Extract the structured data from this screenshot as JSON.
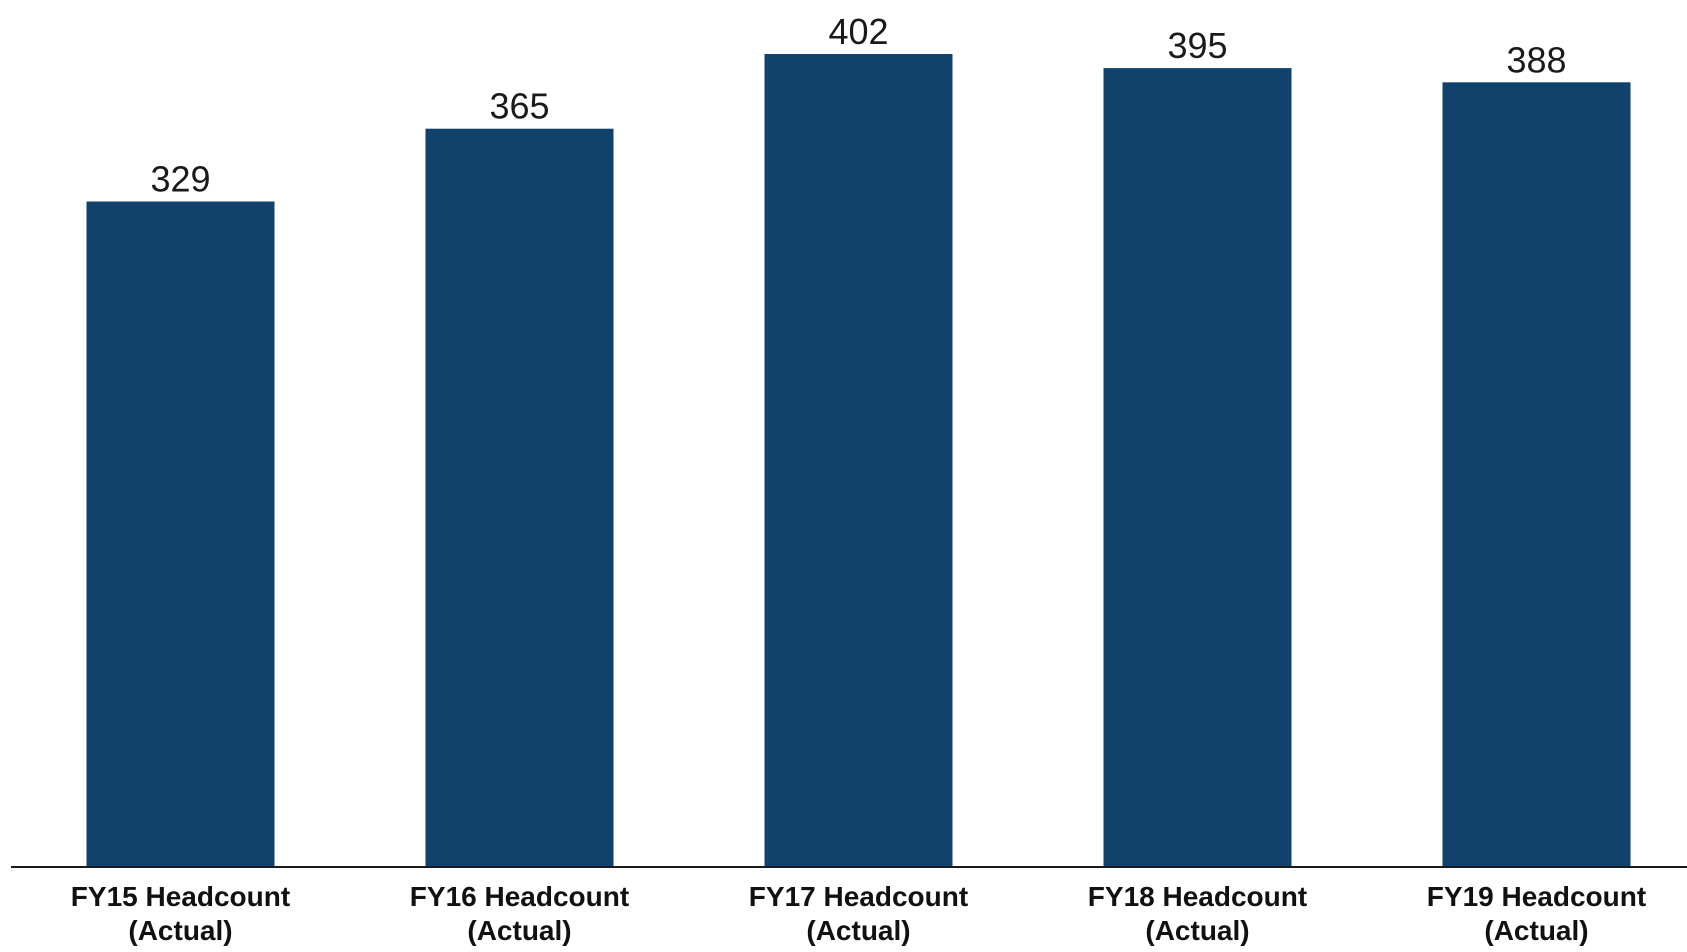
{
  "chart_data": {
    "type": "bar",
    "title": "",
    "xlabel": "",
    "ylabel": "",
    "categories": [
      [
        "FY15 Headcount",
        "(Actual)"
      ],
      [
        "FY16 Headcount",
        "(Actual)"
      ],
      [
        "FY17 Headcount",
        "(Actual)"
      ],
      [
        "FY18 Headcount",
        "(Actual)"
      ],
      [
        "FY19 Headcount",
        "(Actual)"
      ]
    ],
    "values": [
      329,
      365,
      402,
      395,
      388
    ],
    "data_labels": [
      "329",
      "365",
      "402",
      "395",
      "388"
    ],
    "ylim": [
      0,
      402
    ],
    "grid": false,
    "legend": "none",
    "colors": {
      "bar": "#10426b",
      "axis": "#1a1a1a",
      "label_text": "#111111",
      "background": "#ffffff"
    }
  }
}
